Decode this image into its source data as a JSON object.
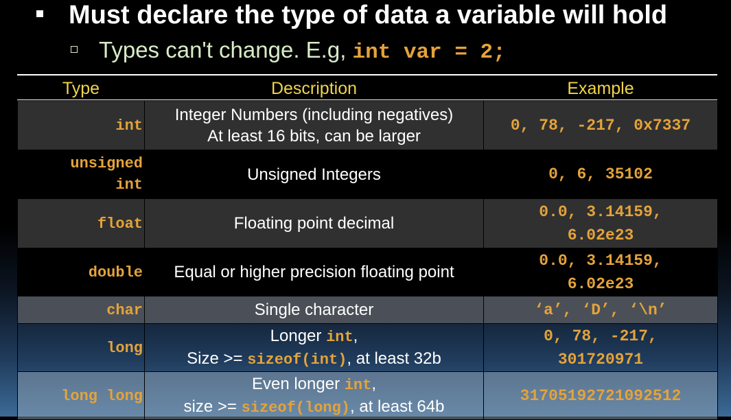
{
  "bullet1": {
    "text": "Must declare the type of data a variable will hold"
  },
  "bullet2": {
    "text": "Types can't change. E.g, ",
    "code": "int var = 2;"
  },
  "table": {
    "headers": [
      "Type",
      "Description",
      "Example"
    ],
    "rows": [
      {
        "type": "int",
        "desc_line1": "Integer Numbers (including negatives)",
        "desc_line2": "At least 16 bits, can be larger",
        "example": "0, 78, -217, 0x7337"
      },
      {
        "type_line1": "unsigned",
        "type_line2": "int",
        "desc": "Unsigned Integers",
        "example": "0, 6, 35102"
      },
      {
        "type": "float",
        "desc": "Floating point decimal",
        "example_line1": "0.0, 3.14159,",
        "example_line2": "6.02e23"
      },
      {
        "type": "double",
        "desc": "Equal or higher precision floating point",
        "example_line1": "0.0, 3.14159,",
        "example_line2": "6.02e23"
      },
      {
        "type": "char",
        "desc": "Single character",
        "example": "‘a’, ‘D’, ‘\\n’"
      },
      {
        "type": "long",
        "desc_line1_prefix": "Longer ",
        "desc_line1_code": "int",
        "desc_line1_suffix": ",",
        "desc_line2_prefix": "Size >= ",
        "desc_line2_code": "sizeof(int)",
        "desc_line2_suffix": ", at least 32b",
        "example_line1": "0, 78, -217,",
        "example_line2": "301720971"
      },
      {
        "type": "long long",
        "desc_line1_prefix": "Even longer ",
        "desc_line1_code": "int",
        "desc_line1_suffix": ",",
        "desc_line2_prefix": "size >= ",
        "desc_line2_code": "sizeof(long)",
        "desc_line2_suffix": ", at least 64b",
        "example": "31705192721092512"
      }
    ]
  }
}
